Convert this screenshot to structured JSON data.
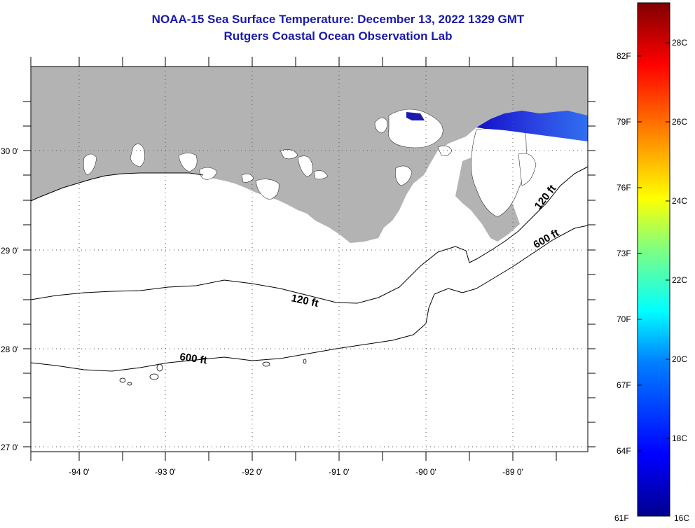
{
  "header": {
    "title": "NOAA-15 Sea Surface Temperature:  December 13, 2022 1329 GMT",
    "subtitle": "Rutgers Coastal Ocean Observation Lab"
  },
  "map": {
    "region": "Northern Gulf of Mexico",
    "lon_range": [
      -94.5,
      -88.2
    ],
    "lat_range": [
      26.95,
      29.83
    ],
    "lon_ticks": [
      -94,
      -93,
      -92,
      -91,
      -90,
      -89
    ],
    "lat_ticks": [
      27,
      28,
      29,
      30
    ],
    "lon_labels": [
      "-94 0'",
      "-93 0'",
      "-92 0'",
      "-91 0'",
      "-90 0'",
      "-89 0'"
    ],
    "lat_labels": [
      "27 0'",
      "28 0'",
      "29 0'",
      "30 0'"
    ],
    "land_color": "#b3b3b3",
    "cloud_color": "#ffffff",
    "grid": "dotted",
    "contours": [
      {
        "label": "120 ft"
      },
      {
        "label": "600 ft"
      }
    ],
    "contour_labels": [
      "120 ft",
      "120 ft",
      "600 ft",
      "600 ft"
    ]
  },
  "colorbar": {
    "fahrenheit_labels": [
      "82F",
      "79F",
      "76F",
      "73F",
      "70F",
      "67F",
      "64F",
      "61F"
    ],
    "celsius_labels": [
      "28C",
      "26C",
      "24C",
      "22C",
      "20C",
      "18C",
      "16C"
    ],
    "range_c": [
      16,
      29
    ],
    "colors": [
      "#00008f",
      "#0000ff",
      "#0080ff",
      "#00ffff",
      "#80ff80",
      "#ffff00",
      "#ff8000",
      "#ff0000",
      "#800000"
    ]
  }
}
